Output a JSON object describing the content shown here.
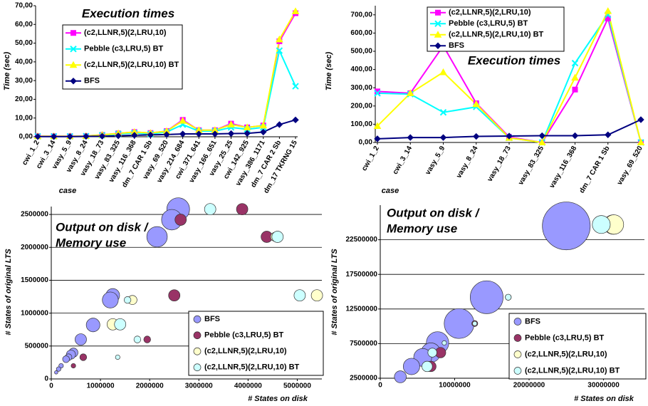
{
  "chart_data": [
    {
      "type": "line",
      "title": "Execution times",
      "y_label": "Time (sec)",
      "x_label": "case",
      "categories": [
        "cwi_1_2",
        "cwi_3_14",
        "vasy_5_9",
        "vasy_8_24",
        "vasy_18_73",
        "vasy_83_325",
        "vasy_116_368",
        "dm_7 CAR 1 Sb",
        "vasy_69_520",
        "vasy_214_684",
        "cwi_371_641",
        "vasy_166_651",
        "vasy_25_25",
        "cwi_142_925",
        "vasy_386_1171",
        "dm_7 CAR 2 Sb",
        "dm_17 TKRNG 15"
      ],
      "series": [
        {
          "name": "(c2,LLNR,5)(2,LRU,10)",
          "color": "#ff00ff",
          "marker": "square",
          "values": [
            0.3,
            0.3,
            0.3,
            0.4,
            1,
            1.8,
            2.5,
            2,
            3,
            9,
            3.5,
            3.5,
            7,
            5,
            6,
            51,
            66
          ]
        },
        {
          "name": "Pebble (c3,LRU,5) BT",
          "color": "#00ffff",
          "marker": "x",
          "values": [
            0.2,
            0.2,
            0.2,
            0.3,
            0.8,
            1.5,
            2,
            1.5,
            2.5,
            6.5,
            3,
            3,
            5,
            4,
            5,
            46,
            27
          ]
        },
        {
          "name": "(c2,LLNR,5)(2,LRU,10) BT",
          "color": "#ffff00",
          "marker": "triangle",
          "values": [
            0.3,
            0.3,
            0.3,
            0.4,
            1,
            1.8,
            2.5,
            2,
            3,
            8.5,
            3.5,
            3.5,
            6.5,
            5,
            6,
            52,
            67
          ]
        },
        {
          "name": "BFS",
          "color": "#000080",
          "marker": "diamond",
          "values": [
            0.1,
            0.1,
            0.1,
            0.2,
            0.3,
            0.5,
            0.8,
            1,
            1.2,
            1.5,
            1.5,
            1.5,
            1.7,
            1.8,
            2.5,
            6.5,
            9
          ]
        }
      ],
      "ylim": [
        0,
        70
      ],
      "yticks": [
        {
          "value": 0,
          "label": "0,00"
        },
        {
          "value": 10,
          "label": "10,00"
        },
        {
          "value": 20,
          "label": "20,00"
        },
        {
          "value": 30,
          "label": "30,00"
        },
        {
          "value": 40,
          "label": "40,00"
        },
        {
          "value": 50,
          "label": "50,00"
        },
        {
          "value": 60,
          "label": "60,00"
        },
        {
          "value": 70,
          "label": "70,00"
        }
      ],
      "grid": false
    },
    {
      "type": "line",
      "title": "Execution times",
      "y_label": "Time (sec)",
      "x_label": "case",
      "categories": [
        "cwi_1_2",
        "cwi_3_14",
        "vasy_5_9",
        "vasy_8_24",
        "vasy_18_73",
        "vasy_83_325",
        "vasy_116_368",
        "dm_7 CAR 1 Sb",
        "vasy_69_520"
      ],
      "series": [
        {
          "name": "(c2,LLNR,5)(2,LRU,10)",
          "color": "#ff00ff",
          "marker": "square",
          "values": [
            280,
            270,
            530,
            215,
            30,
            0,
            290,
            680,
            0
          ]
        },
        {
          "name": "Pebble (c3,LRU,5) BT",
          "color": "#00ffff",
          "marker": "x",
          "values": [
            270,
            265,
            165,
            195,
            25,
            0,
            435,
            700,
            0
          ]
        },
        {
          "name": "(c2,LLNR,5)(2,LRU,10) BT",
          "color": "#ffff00",
          "marker": "triangle",
          "values": [
            90,
            270,
            385,
            210,
            25,
            0,
            355,
            720,
            0
          ]
        },
        {
          "name": "BFS",
          "color": "#000080",
          "marker": "diamond",
          "values": [
            20,
            27,
            27,
            33,
            35,
            37,
            37,
            42,
            125
          ]
        }
      ],
      "ylim": [
        0,
        750
      ],
      "yticks": [
        {
          "value": 0,
          "label": "0,00"
        },
        {
          "value": 100,
          "label": "100,00"
        },
        {
          "value": 200,
          "label": "200,00"
        },
        {
          "value": 300,
          "label": "300,00"
        },
        {
          "value": 400,
          "label": "400,00"
        },
        {
          "value": 500,
          "label": "500,00"
        },
        {
          "value": 600,
          "label": "600,00"
        },
        {
          "value": 700,
          "label": "700,00"
        }
      ],
      "grid": false
    },
    {
      "type": "bubble",
      "title": [
        "Output on disk /",
        "Memory use"
      ],
      "y_label": "# States of original LTS",
      "x_label": "# States on disk",
      "series": [
        {
          "name": "BFS",
          "color": "#9999ff",
          "x": [
            2580000,
            2450000,
            2150000,
            1250000,
            1200000,
            850000,
            600000,
            450000,
            400000,
            350000,
            300000,
            200000,
            150000,
            100000
          ],
          "values": [
            2580000,
            2420000,
            2160000,
            1270000,
            1200000,
            820000,
            600000,
            400000,
            370000,
            330000,
            300000,
            200000,
            150000,
            100000
          ],
          "sizes": [
            10,
            9,
            9,
            6,
            7,
            6,
            5,
            4,
            4,
            3,
            3,
            2,
            2,
            1.5
          ]
        },
        {
          "name": "Pebble (c3,LRU,5) BT",
          "color": "#993366",
          "x": [
            3880000,
            2630000,
            4380000,
            2500000,
            1950000,
            650000,
            450000
          ],
          "values": [
            2580000,
            2420000,
            2160000,
            1270000,
            600000,
            330000,
            200000
          ],
          "sizes": [
            5,
            5,
            5,
            5,
            3,
            3,
            2
          ]
        },
        {
          "name": "(c2,LLNR,5)(2,LRU,10)",
          "color": "#ffffcc",
          "x": [
            1250000,
            1650000,
            5400000,
            4550000
          ],
          "values": [
            830000,
            1200000,
            1270000,
            2160000
          ],
          "sizes": [
            5,
            4,
            5,
            4
          ]
        },
        {
          "name": "(c2,LLNR,5)(2,LRU,10) BT",
          "color": "#ccffff",
          "x": [
            3230000,
            4600000,
            5050000,
            1400000,
            1550000,
            1750000,
            1350000
          ],
          "values": [
            2580000,
            2160000,
            1270000,
            830000,
            1200000,
            600000,
            330000
          ],
          "sizes": [
            5,
            5,
            5,
            5,
            3,
            3,
            2
          ]
        }
      ],
      "xlim": [
        0,
        5500000
      ],
      "xticks": [
        0,
        1000000,
        2000000,
        3000000,
        4000000,
        5000000
      ],
      "ylim": [
        0,
        2620000
      ],
      "yticks": [
        0,
        500000,
        1000000,
        1500000,
        2000000,
        2500000
      ],
      "grid": true
    },
    {
      "type": "bubble",
      "title": [
        "Output on disk /",
        "Memory use"
      ],
      "y_label": "# States of original LTS",
      "x_label": "# States on disk",
      "series": [
        {
          "name": "BFS",
          "color": "#9999ff",
          "x": [
            25000000,
            14300000,
            10600000,
            7700000,
            6800000,
            5700000,
            4200000,
            2700000
          ],
          "values": [
            24500000,
            14200000,
            10400000,
            7600000,
            6200000,
            5500000,
            4200000,
            2700000
          ],
          "sizes": [
            32,
            22,
            20,
            15,
            13,
            12,
            11,
            8
          ]
        },
        {
          "name": "Pebble (c3,LRU,5) BT",
          "color": "#993366",
          "x": [
            31300000,
            17200000,
            12700000,
            8100000,
            6800000
          ],
          "values": [
            24700000,
            14200000,
            10400000,
            6200000,
            4200000
          ],
          "sizes": [
            13,
            4,
            4,
            7,
            7
          ]
        },
        {
          "name": "(c2,LLNR,5)(2,LRU,10)",
          "color": "#ffffcc",
          "x": [
            31400000
          ],
          "values": [
            24700000
          ],
          "sizes": [
            13
          ]
        },
        {
          "name": "(c2,LLNR,5)(2,LRU,10) BT",
          "color": "#ccffff",
          "x": [
            29700000,
            17200000,
            12700000,
            8600000,
            7000000,
            6300000
          ],
          "values": [
            24700000,
            14200000,
            10400000,
            7600000,
            6200000,
            4200000
          ],
          "sizes": [
            12,
            4,
            3,
            3,
            6,
            7
          ]
        }
      ],
      "xlim": [
        0,
        35500000
      ],
      "xticks": [
        0,
        10000000,
        20000000,
        30000000
      ],
      "ylim": [
        2500000,
        27500000
      ],
      "yticks": [
        2500000,
        7500000,
        12500000,
        17500000,
        22500000
      ],
      "grid": true
    }
  ]
}
